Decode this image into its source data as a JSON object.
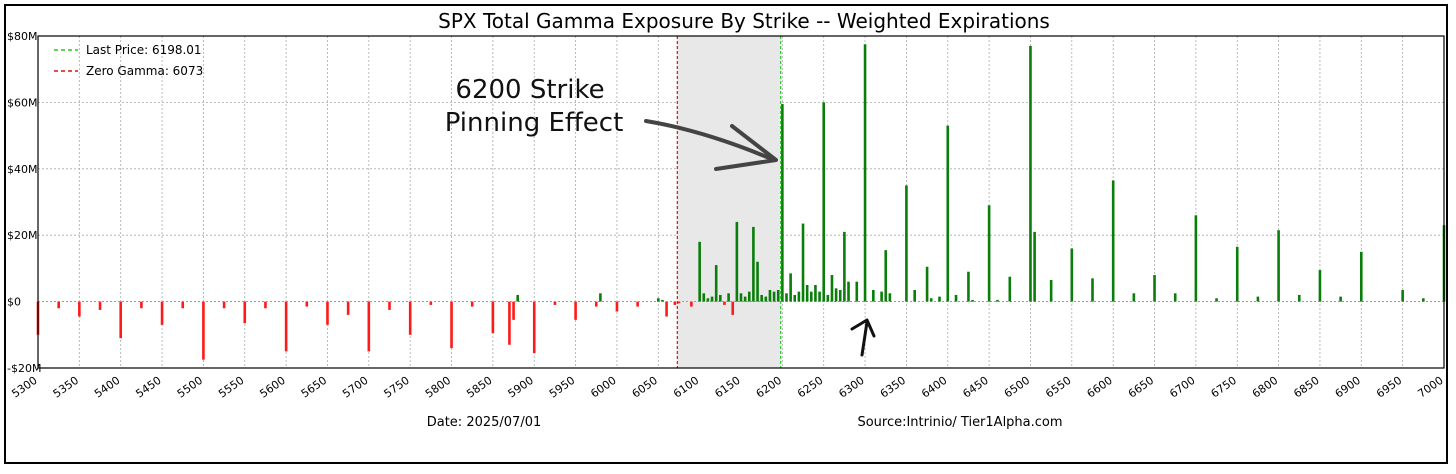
{
  "chart_data": {
    "type": "bar",
    "title": "SPX Total Gamma Exposure By Strike -- Weighted Expirations",
    "xlabel": "",
    "ylabel": "",
    "ylim": [
      -20,
      80
    ],
    "xlim": [
      5300,
      7000
    ],
    "y_unit": "M",
    "y_ticks": [
      -20,
      0,
      20,
      40,
      60,
      80
    ],
    "y_tick_labels": [
      "-$20M",
      "$0",
      "$20M",
      "$40M",
      "$60M",
      "$80M"
    ],
    "x_ticks": [
      5300,
      5350,
      5400,
      5450,
      5500,
      5550,
      5600,
      5650,
      5700,
      5750,
      5800,
      5850,
      5900,
      5950,
      6000,
      6050,
      6100,
      6150,
      6200,
      6250,
      6300,
      6350,
      6400,
      6450,
      6500,
      6550,
      6600,
      6650,
      6700,
      6750,
      6800,
      6850,
      6900,
      6950,
      7000
    ],
    "grid": true,
    "legend_placement": "top-left",
    "legend": [
      {
        "label": "Last Price: 6198.01",
        "color": "#22cc22",
        "style": "dashed"
      },
      {
        "label": "Zero Gamma:  6073",
        "color": "#dd1111",
        "style": "dashed"
      }
    ],
    "last_price": 6198.01,
    "zero_gamma": 6073,
    "shaded_range": [
      6073,
      6198.01
    ],
    "colors": {
      "positive": "#0a7d0a",
      "negative": "#ff1a1a",
      "shade": "#e8e8e8"
    },
    "strikes": [
      5300,
      5325,
      5350,
      5375,
      5400,
      5425,
      5450,
      5475,
      5500,
      5525,
      5550,
      5575,
      5600,
      5625,
      5650,
      5675,
      5700,
      5725,
      5750,
      5775,
      5800,
      5825,
      5850,
      5870,
      5875,
      5880,
      5900,
      5925,
      5950,
      5975,
      5980,
      6000,
      6025,
      6050,
      6055,
      6060,
      6070,
      6075,
      6090,
      6100,
      6105,
      6110,
      6115,
      6120,
      6125,
      6130,
      6135,
      6140,
      6145,
      6150,
      6155,
      6160,
      6165,
      6170,
      6175,
      6180,
      6185,
      6190,
      6195,
      6200,
      6205,
      6210,
      6215,
      6220,
      6225,
      6230,
      6235,
      6240,
      6245,
      6250,
      6255,
      6260,
      6265,
      6270,
      6275,
      6280,
      6290,
      6300,
      6310,
      6320,
      6325,
      6330,
      6350,
      6360,
      6375,
      6380,
      6390,
      6400,
      6410,
      6425,
      6430,
      6450,
      6460,
      6475,
      6500,
      6505,
      6525,
      6550,
      6575,
      6600,
      6625,
      6650,
      6675,
      6700,
      6725,
      6750,
      6775,
      6800,
      6825,
      6850,
      6875,
      6900,
      6950,
      6975,
      7000
    ],
    "values": [
      -10,
      -2,
      -4.5,
      -2.5,
      -11,
      -2,
      -7,
      -2,
      -17.5,
      -2,
      -6.5,
      -2,
      -15,
      -1.5,
      -7,
      -4,
      -15,
      -2.5,
      -10,
      -1,
      -14,
      -1.5,
      -9.5,
      -13,
      -5.5,
      2,
      -15.5,
      -1,
      -5.5,
      -1.5,
      2.5,
      -3,
      -1.5,
      1,
      0.5,
      -4.5,
      -1,
      -0.5,
      -1.5,
      18,
      2.5,
      1,
      1.5,
      11,
      2,
      -1,
      2.5,
      -4,
      24,
      2.5,
      1.5,
      3,
      22.5,
      12,
      2,
      1.5,
      3.5,
      3,
      3.5,
      59.5,
      2.5,
      8.5,
      2,
      3,
      23.5,
      5,
      3,
      5,
      3,
      60,
      2,
      8,
      4,
      3.5,
      21,
      6,
      6,
      77.5,
      3.5,
      3,
      15.5,
      2.5,
      35,
      3.5,
      10.5,
      1,
      1.5,
      53,
      2,
      9,
      0.5,
      29,
      0.5,
      7.5,
      77,
      21,
      6.5,
      16,
      7,
      36.5,
      2.5,
      8,
      2.5,
      26,
      1,
      16.5,
      1.5,
      21.5,
      2,
      9.5,
      1.5,
      15,
      3.5,
      1,
      23
    ]
  },
  "annotation": {
    "line1": "6200 Strike",
    "line2": "Pinning Effect"
  },
  "footer": {
    "date": "Date: 2025/07/01",
    "source": "Source:Intrinio/ Tier1Alpha.com"
  }
}
